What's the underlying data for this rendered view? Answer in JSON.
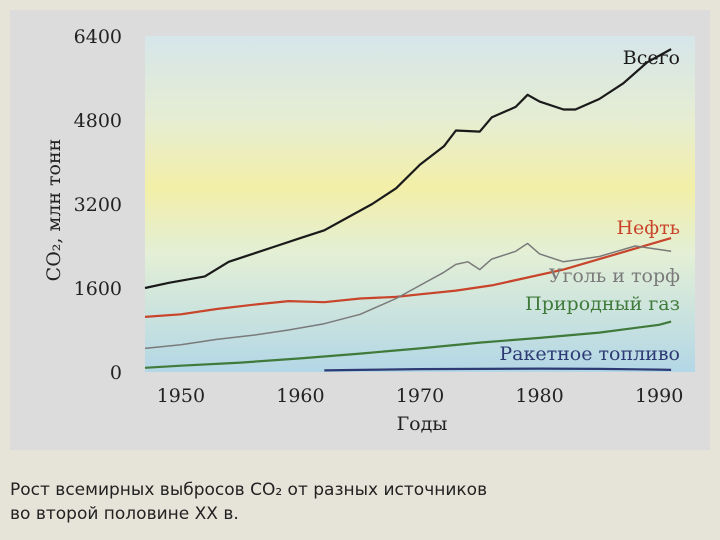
{
  "chart_data": {
    "type": "line",
    "title": "",
    "xlabel": "Годы",
    "ylabel": "CO₂, млн тонн",
    "xlim": [
      1947,
      1993
    ],
    "ylim": [
      0,
      6400
    ],
    "x_ticks": [
      1950,
      1960,
      1970,
      1980,
      1990
    ],
    "y_ticks": [
      0,
      1600,
      3200,
      4800,
      6400
    ],
    "y_tick_labels": [
      "0",
      "1600",
      "3200",
      "4800",
      "6400"
    ],
    "x_tick_labels": [
      "1950",
      "1960",
      "1970",
      "1980",
      "1990"
    ],
    "grid": false,
    "legend": "labels-beside-lines",
    "series": [
      {
        "name": "Всего",
        "color": "#1a1a1a",
        "x": [
          1947,
          1949,
          1952,
          1954,
          1956,
          1958,
          1960,
          1962,
          1964,
          1966,
          1968,
          1970,
          1972,
          1973,
          1975,
          1976,
          1978,
          1979,
          1980,
          1982,
          1983,
          1985,
          1987,
          1989,
          1991
        ],
        "y": [
          1600,
          1700,
          1820,
          2100,
          2250,
          2400,
          2550,
          2700,
          2950,
          3200,
          3500,
          3950,
          4300,
          4600,
          4580,
          4850,
          5050,
          5280,
          5150,
          5000,
          5000,
          5200,
          5500,
          5900,
          6150
        ]
      },
      {
        "name": "Нефть",
        "color": "#c8442a",
        "x": [
          1947,
          1950,
          1953,
          1956,
          1959,
          1962,
          1965,
          1968,
          1970,
          1973,
          1976,
          1979,
          1982,
          1985,
          1988,
          1991
        ],
        "y": [
          1050,
          1100,
          1200,
          1280,
          1350,
          1330,
          1400,
          1430,
          1480,
          1550,
          1650,
          1800,
          1950,
          2150,
          2350,
          2550
        ]
      },
      {
        "name": "Уголь и торф",
        "color": "#7a7a7a",
        "x": [
          1947,
          1950,
          1953,
          1956,
          1959,
          1962,
          1965,
          1968,
          1970,
          1972,
          1973,
          1974,
          1975,
          1976,
          1978,
          1979,
          1980,
          1982,
          1985,
          1988,
          1991
        ],
        "y": [
          450,
          520,
          620,
          700,
          800,
          920,
          1100,
          1400,
          1650,
          1900,
          2050,
          2100,
          1950,
          2150,
          2300,
          2450,
          2250,
          2100,
          2200,
          2400,
          2300
        ]
      },
      {
        "name": "Природный газ",
        "color": "#3f7a3a",
        "x": [
          1947,
          1950,
          1955,
          1960,
          1965,
          1970,
          1975,
          1980,
          1985,
          1990,
          1991
        ],
        "y": [
          80,
          120,
          180,
          260,
          350,
          450,
          560,
          650,
          750,
          900,
          960
        ]
      },
      {
        "name": "Ракетное топливо",
        "color": "#2e3a73",
        "x": [
          1962,
          1965,
          1970,
          1975,
          1980,
          1985,
          1990,
          1991
        ],
        "y": [
          30,
          40,
          55,
          60,
          65,
          60,
          45,
          40
        ]
      }
    ]
  },
  "caption": {
    "line1": "Рост всемирных выбросов CO₂ от разных источников",
    "line2": "во второй половине XX в."
  }
}
